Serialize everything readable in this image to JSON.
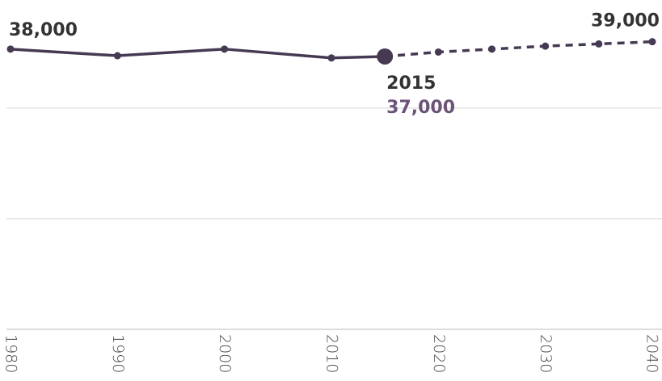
{
  "chart_data": {
    "type": "line",
    "xlim": [
      1980,
      2040
    ],
    "xticks": [
      1980,
      1990,
      2000,
      2010,
      2020,
      2030,
      2040
    ],
    "ylim": [
      0,
      44000
    ],
    "yticks": [
      0,
      15000,
      30000
    ],
    "grid": true,
    "highlight_color": "#6b5478",
    "series": [
      {
        "color": "#463a52",
        "dashed": false,
        "x": [
          1980,
          1990,
          2000,
          2010,
          2015
        ],
        "values": [
          38000,
          37100,
          38000,
          36800,
          37000
        ],
        "value_labels": [
          "38,000",
          null,
          null,
          null,
          "37,000"
        ]
      },
      {
        "color": "#463a52",
        "dashed": true,
        "x": [
          2015,
          2020,
          2025,
          2030,
          2035,
          2040
        ],
        "values": [
          37000,
          37600,
          38000,
          38400,
          38700,
          39000
        ],
        "value_labels": [
          null,
          null,
          null,
          null,
          null,
          "39,000"
        ]
      }
    ]
  }
}
